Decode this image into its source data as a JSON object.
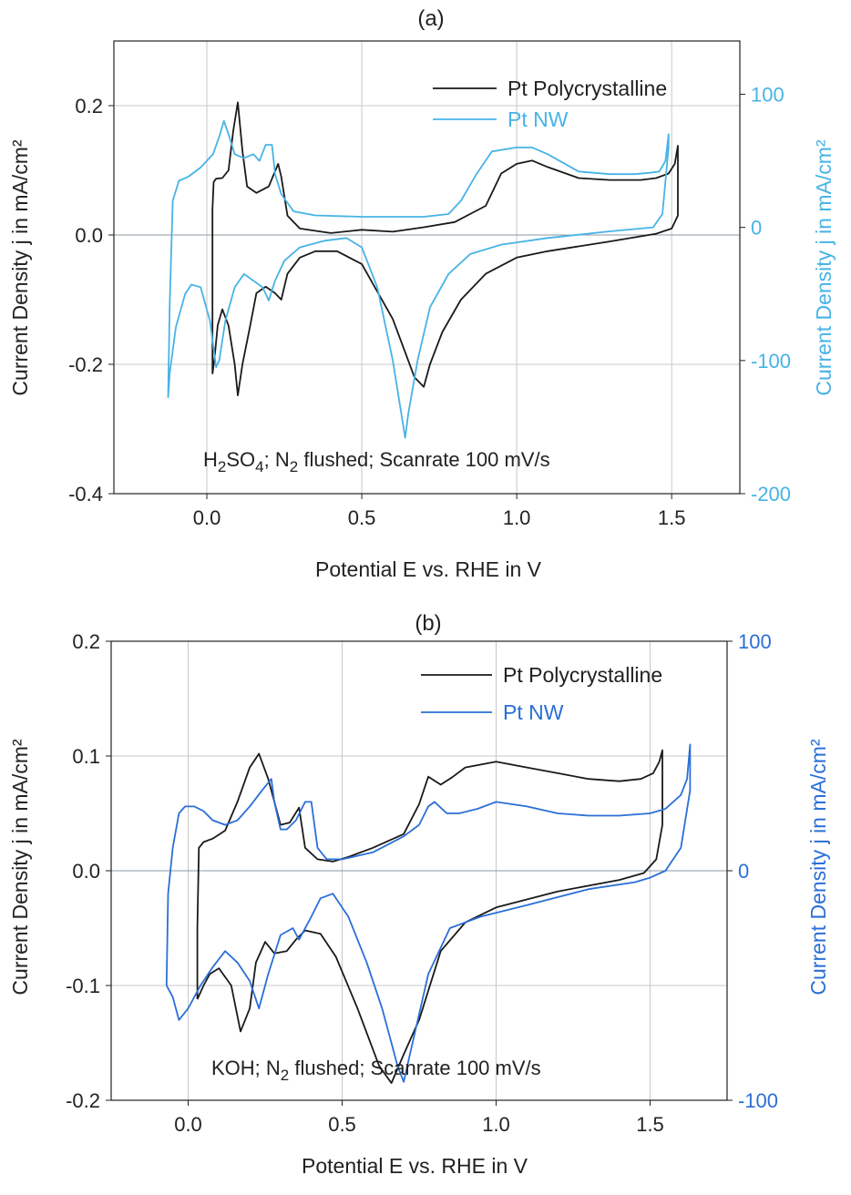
{
  "colors": {
    "black": "#1a1a1a",
    "panel_a_nw": "#47b3e6",
    "panel_b_nw": "#2a6fd6",
    "grid": "#c8c8c8",
    "zero_line": "#8a9aa2"
  },
  "chart_data": [
    {
      "type": "line",
      "panel_label": "(a)",
      "xlabel": "Potential E vs. RHE in V",
      "ylabel": "Current Density j in mA/cm²",
      "ylabel_right": "Current Density j in mA/cm²",
      "xlim": [
        -0.3,
        1.72
      ],
      "ylim": [
        -0.4,
        0.3
      ],
      "ylim_right": [
        -200,
        140
      ],
      "x_ticks": [
        "0.0",
        "0.5",
        "1.0",
        "1.5"
      ],
      "x_tick_values": [
        0.0,
        0.5,
        1.0,
        1.5
      ],
      "y_ticks": [
        "0.2",
        "0.0",
        "-0.2",
        "-0.4"
      ],
      "y_tick_values": [
        0.2,
        0.0,
        -0.2,
        -0.4
      ],
      "y_right_ticks": [
        "100",
        "0",
        "-100",
        "-200"
      ],
      "y_right_tick_values": [
        100,
        0,
        -100,
        -200
      ],
      "annotation": {
        "pre": "H",
        "sub1": "2",
        "mid": "SO",
        "sub2": "4",
        "mid2": "; N",
        "sub3": "2",
        "post": " flushed; Scanrate 100 mV/s"
      },
      "grid": true,
      "legend_position": "top-right",
      "series": [
        {
          "name": "Pt Polycrystalline",
          "axis": "left",
          "color_key": "black",
          "x": [
            0.018,
            0.018,
            0.022,
            0.03,
            0.05,
            0.07,
            0.085,
            0.1,
            0.115,
            0.13,
            0.16,
            0.2,
            0.23,
            0.24,
            0.26,
            0.3,
            0.4,
            0.5,
            0.6,
            0.7,
            0.8,
            0.9,
            0.95,
            1.0,
            1.05,
            1.1,
            1.2,
            1.3,
            1.4,
            1.45,
            1.49,
            1.51,
            1.52,
            1.52,
            1.5,
            1.45,
            1.3,
            1.1,
            1.0,
            0.9,
            0.82,
            0.76,
            0.72,
            0.7,
            0.67,
            0.6,
            0.5,
            0.42,
            0.35,
            0.3,
            0.26,
            0.24,
            0.22,
            0.19,
            0.16,
            0.14,
            0.115,
            0.1,
            0.09,
            0.07,
            0.05,
            0.035,
            0.025,
            0.018
          ],
          "y": [
            -0.215,
            0.04,
            0.082,
            0.087,
            0.088,
            0.1,
            0.16,
            0.205,
            0.13,
            0.075,
            0.065,
            0.075,
            0.11,
            0.09,
            0.03,
            0.01,
            0.003,
            0.008,
            0.005,
            0.012,
            0.02,
            0.045,
            0.095,
            0.11,
            0.115,
            0.105,
            0.088,
            0.085,
            0.085,
            0.088,
            0.095,
            0.11,
            0.138,
            0.03,
            0.01,
            0.002,
            -0.01,
            -0.025,
            -0.035,
            -0.06,
            -0.1,
            -0.15,
            -0.2,
            -0.235,
            -0.22,
            -0.13,
            -0.045,
            -0.025,
            -0.025,
            -0.035,
            -0.06,
            -0.1,
            -0.09,
            -0.08,
            -0.09,
            -0.14,
            -0.2,
            -0.248,
            -0.2,
            -0.14,
            -0.115,
            -0.14,
            -0.19,
            -0.215
          ]
        },
        {
          "name": "Pt NW",
          "axis": "right",
          "color_key": "panel_a_nw",
          "x": [
            -0.125,
            -0.12,
            -0.11,
            -0.09,
            -0.06,
            -0.02,
            0.02,
            0.04,
            0.055,
            0.07,
            0.09,
            0.12,
            0.15,
            0.17,
            0.19,
            0.21,
            0.22,
            0.24,
            0.28,
            0.35,
            0.5,
            0.7,
            0.78,
            0.82,
            0.87,
            0.92,
            1.0,
            1.05,
            1.1,
            1.2,
            1.3,
            1.38,
            1.43,
            1.46,
            1.48,
            1.49,
            1.49,
            1.47,
            1.44,
            1.3,
            1.1,
            0.95,
            0.85,
            0.78,
            0.72,
            0.68,
            0.65,
            0.64,
            0.6,
            0.55,
            0.5,
            0.45,
            0.38,
            0.3,
            0.25,
            0.22,
            0.2,
            0.18,
            0.15,
            0.12,
            0.09,
            0.06,
            0.04,
            0.03,
            0.01,
            -0.02,
            -0.05,
            -0.07,
            -0.1,
            -0.12,
            -0.125
          ],
          "y": [
            -128,
            -60,
            20,
            35,
            38,
            45,
            55,
            68,
            80,
            70,
            55,
            52,
            55,
            50,
            62,
            62,
            40,
            25,
            12,
            9,
            8,
            8,
            10,
            20,
            40,
            57,
            60,
            60,
            55,
            42,
            40,
            40,
            41,
            42,
            50,
            70,
            60,
            10,
            0,
            -3,
            -8,
            -13,
            -20,
            -35,
            -60,
            -100,
            -140,
            -158,
            -100,
            -45,
            -15,
            -8,
            -10,
            -15,
            -25,
            -40,
            -55,
            -45,
            -40,
            -35,
            -45,
            -70,
            -100,
            -105,
            -70,
            -45,
            -43,
            -50,
            -75,
            -110,
            -128
          ]
        }
      ]
    },
    {
      "type": "line",
      "panel_label": "(b)",
      "xlabel": "Potential E vs. RHE in V",
      "ylabel": "Current Density j in mA/cm²",
      "ylabel_right": "Current Density j in mA/cm²",
      "xlim": [
        -0.25,
        1.75
      ],
      "ylim": [
        -0.2,
        0.2
      ],
      "ylim_right": [
        -100,
        100
      ],
      "x_ticks": [
        "0.0",
        "0.5",
        "1.0",
        "1.5"
      ],
      "x_tick_values": [
        0.0,
        0.5,
        1.0,
        1.5
      ],
      "y_ticks": [
        "0.2",
        "0.1",
        "0.0",
        "-0.1",
        "-0.2"
      ],
      "y_tick_values": [
        0.2,
        0.1,
        0.0,
        -0.1,
        -0.2
      ],
      "y_right_ticks": [
        "100",
        "0",
        "-100"
      ],
      "y_right_tick_values": [
        100,
        0,
        -100
      ],
      "annotation": {
        "pre": "KOH; N",
        "sub1": "2",
        "mid": "",
        "sub2": "",
        "mid2": "",
        "sub3": "",
        "post": " flushed; Scanrate 100 mV/s"
      },
      "grid": true,
      "legend_position": "top-right",
      "series": [
        {
          "name": "Pt Polycrystalline",
          "axis": "left",
          "color_key": "black",
          "x": [
            0.03,
            0.03,
            0.035,
            0.05,
            0.08,
            0.12,
            0.16,
            0.2,
            0.23,
            0.26,
            0.3,
            0.33,
            0.36,
            0.38,
            0.42,
            0.47,
            0.52,
            0.6,
            0.7,
            0.75,
            0.78,
            0.82,
            0.86,
            0.9,
            1.0,
            1.1,
            1.2,
            1.3,
            1.4,
            1.47,
            1.51,
            1.53,
            1.54,
            1.54,
            1.52,
            1.48,
            1.4,
            1.2,
            1.0,
            0.9,
            0.82,
            0.75,
            0.7,
            0.66,
            0.62,
            0.55,
            0.48,
            0.43,
            0.38,
            0.35,
            0.32,
            0.28,
            0.25,
            0.22,
            0.2,
            0.17,
            0.14,
            0.1,
            0.07,
            0.05,
            0.03
          ],
          "y": [
            -0.112,
            -0.05,
            0.02,
            0.025,
            0.028,
            0.035,
            0.06,
            0.09,
            0.102,
            0.08,
            0.04,
            0.042,
            0.055,
            0.02,
            0.01,
            0.008,
            0.012,
            0.02,
            0.032,
            0.058,
            0.082,
            0.075,
            0.082,
            0.09,
            0.095,
            0.09,
            0.085,
            0.08,
            0.078,
            0.08,
            0.085,
            0.095,
            0.105,
            0.04,
            0.01,
            -0.002,
            -0.008,
            -0.018,
            -0.032,
            -0.045,
            -0.07,
            -0.13,
            -0.16,
            -0.185,
            -0.17,
            -0.12,
            -0.075,
            -0.055,
            -0.052,
            -0.06,
            -0.07,
            -0.072,
            -0.062,
            -0.08,
            -0.12,
            -0.14,
            -0.1,
            -0.085,
            -0.09,
            -0.1,
            -0.112
          ]
        },
        {
          "name": "Pt NW",
          "axis": "right",
          "color_key": "panel_b_nw",
          "x": [
            -0.07,
            -0.065,
            -0.05,
            -0.03,
            -0.01,
            0.02,
            0.05,
            0.08,
            0.12,
            0.16,
            0.2,
            0.24,
            0.27,
            0.28,
            0.3,
            0.32,
            0.35,
            0.38,
            0.4,
            0.42,
            0.45,
            0.5,
            0.6,
            0.7,
            0.75,
            0.78,
            0.8,
            0.84,
            0.88,
            0.94,
            1.0,
            1.1,
            1.2,
            1.3,
            1.4,
            1.5,
            1.55,
            1.6,
            1.62,
            1.63,
            1.63,
            1.6,
            1.55,
            1.5,
            1.45,
            1.3,
            1.1,
            0.95,
            0.85,
            0.78,
            0.72,
            0.7,
            0.68,
            0.66,
            0.63,
            0.58,
            0.52,
            0.47,
            0.43,
            0.4,
            0.36,
            0.34,
            0.3,
            0.26,
            0.23,
            0.2,
            0.16,
            0.12,
            0.08,
            0.04,
            0.0,
            -0.03,
            -0.05,
            -0.07
          ],
          "y": [
            -50,
            -10,
            10,
            25,
            28,
            28,
            26,
            22,
            20,
            22,
            28,
            35,
            40,
            30,
            18,
            18,
            22,
            30,
            30,
            10,
            5,
            5,
            8,
            15,
            20,
            28,
            30,
            25,
            25,
            27,
            30,
            28,
            25,
            24,
            24,
            25,
            27,
            33,
            40,
            55,
            35,
            10,
            0,
            -3,
            -5,
            -8,
            -15,
            -20,
            -25,
            -45,
            -80,
            -92,
            -85,
            -75,
            -60,
            -40,
            -20,
            -10,
            -12,
            -20,
            -30,
            -25,
            -28,
            -45,
            -60,
            -48,
            -40,
            -35,
            -42,
            -50,
            -60,
            -65,
            -55,
            -50
          ]
        }
      ]
    }
  ]
}
